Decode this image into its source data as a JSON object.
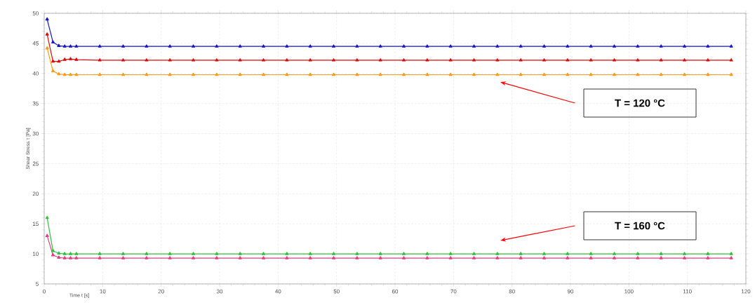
{
  "chart_data": {
    "type": "line",
    "xlabel": "Time t [s]",
    "ylabel": "Shear Stress τ [Pa]",
    "x": [
      0.5,
      1.5,
      2.5,
      3.5,
      4.5,
      5.5,
      9.5,
      13.5,
      17.5,
      21.5,
      25.5,
      29.5,
      33.5,
      37.5,
      41.5,
      45.5,
      49.5,
      53.5,
      57.5,
      61.5,
      65.5,
      69.5,
      73.5,
      77.5,
      81.5,
      85.5,
      89.5,
      93.5,
      97.5,
      101.5,
      105.5,
      109.5,
      113.5,
      117.5
    ],
    "series": [
      {
        "color": "#1414c8",
        "values": [
          49,
          45.2,
          44.6,
          44.5,
          44.5,
          44.5,
          44.5,
          44.5,
          44.5,
          44.5,
          44.5,
          44.5,
          44.5,
          44.5,
          44.5,
          44.5,
          44.5,
          44.5,
          44.5,
          44.5,
          44.5,
          44.5,
          44.5,
          44.5,
          44.5,
          44.5,
          44.5,
          44.5,
          44.5,
          44.5,
          44.5,
          44.5,
          44.5,
          44.5
        ]
      },
      {
        "color": "#dc0a0a",
        "values": [
          46.5,
          42,
          42,
          42.3,
          42.4,
          42.3,
          42.2,
          42.2,
          42.2,
          42.2,
          42.2,
          42.2,
          42.2,
          42.2,
          42.2,
          42.2,
          42.2,
          42.2,
          42.2,
          42.2,
          42.2,
          42.2,
          42.2,
          42.2,
          42.2,
          42.2,
          42.2,
          42.2,
          42.2,
          42.2,
          42.2,
          42.2,
          42.2,
          42.2
        ]
      },
      {
        "color": "#ff9a14",
        "values": [
          44.2,
          40.4,
          39.9,
          39.8,
          39.8,
          39.8,
          39.8,
          39.8,
          39.8,
          39.8,
          39.8,
          39.8,
          39.8,
          39.8,
          39.8,
          39.8,
          39.8,
          39.8,
          39.8,
          39.8,
          39.8,
          39.8,
          39.8,
          39.8,
          39.8,
          39.8,
          39.8,
          39.8,
          39.8,
          39.8,
          39.8,
          39.8,
          39.8,
          39.8
        ]
      },
      {
        "color": "#e63c82",
        "values": [
          13,
          9.8,
          9.4,
          9.3,
          9.3,
          9.3,
          9.3,
          9.3,
          9.3,
          9.3,
          9.3,
          9.3,
          9.3,
          9.3,
          9.3,
          9.3,
          9.3,
          9.3,
          9.3,
          9.3,
          9.3,
          9.3,
          9.3,
          9.3,
          9.3,
          9.3,
          9.3,
          9.3,
          9.3,
          9.3,
          9.3,
          9.3,
          9.3,
          9.3
        ]
      },
      {
        "color": "#32c03c",
        "values": [
          16,
          10.5,
          10.1,
          10,
          10,
          10,
          10,
          10,
          10,
          10,
          10,
          10,
          10,
          10,
          10,
          10,
          10,
          10,
          10,
          10,
          10,
          10,
          10,
          10,
          10,
          10,
          10,
          10,
          10,
          10,
          10,
          10,
          10,
          10
        ]
      }
    ],
    "xlim": [
      0,
      120
    ],
    "ylim": [
      5,
      50
    ],
    "xticks": [
      0,
      10,
      20,
      30,
      40,
      50,
      60,
      70,
      80,
      90,
      100,
      110,
      120
    ],
    "yticks": [
      5,
      10,
      15,
      20,
      25,
      30,
      35,
      40,
      45,
      50
    ],
    "grid": true,
    "marker": "triangle",
    "line_style": "solid",
    "annotations": [
      "T = 120 °C",
      "T = 160 °C"
    ]
  }
}
